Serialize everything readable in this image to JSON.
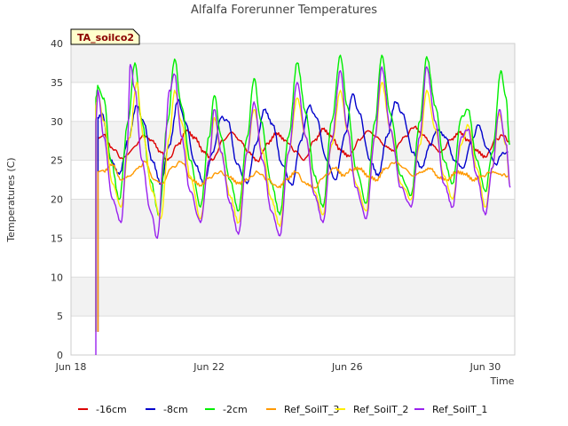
{
  "chart_data": {
    "type": "line",
    "title": "Alfalfa Forerunner Temperatures",
    "xlabel": "Time",
    "ylabel": "Temperatures (C)",
    "ylim": [
      0,
      40
    ],
    "xlim": [
      18,
      30.85
    ],
    "x_unit": "days since Jun 0 (day of June)",
    "yticks": [
      0,
      5,
      10,
      15,
      20,
      25,
      30,
      35,
      40
    ],
    "xticks": [
      {
        "value": 18,
        "label": "Jun 18"
      },
      {
        "value": 22,
        "label": "Jun 22"
      },
      {
        "value": 26,
        "label": "Jun 26"
      },
      {
        "value": 30,
        "label": "Jun 30"
      }
    ],
    "grid": "horizontal bands",
    "legend_position": "bottom",
    "annotation": "TA_soilco2",
    "series": [
      {
        "name": "-16cm",
        "color": "#dd0000",
        "start_value": 3,
        "points": [
          [
            18.78,
            28.0
          ],
          [
            18.95,
            28.3
          ],
          [
            19.2,
            26.5
          ],
          [
            19.5,
            25.2
          ],
          [
            19.85,
            26.8
          ],
          [
            20.1,
            28.2
          ],
          [
            20.35,
            27.5
          ],
          [
            20.6,
            26.0
          ],
          [
            20.8,
            25.0
          ],
          [
            21.1,
            27.0
          ],
          [
            21.35,
            28.8
          ],
          [
            21.6,
            27.8
          ],
          [
            21.85,
            26.0
          ],
          [
            22.1,
            25.0
          ],
          [
            22.4,
            27.5
          ],
          [
            22.65,
            28.6
          ],
          [
            22.9,
            27.5
          ],
          [
            23.15,
            26.0
          ],
          [
            23.4,
            24.9
          ],
          [
            23.7,
            27.2
          ],
          [
            23.95,
            28.5
          ],
          [
            24.2,
            27.6
          ],
          [
            24.5,
            26.2
          ],
          [
            24.75,
            25.0
          ],
          [
            25.05,
            27.5
          ],
          [
            25.3,
            29.0
          ],
          [
            25.55,
            28.0
          ],
          [
            25.8,
            26.3
          ],
          [
            26.05,
            25.5
          ],
          [
            26.35,
            27.6
          ],
          [
            26.6,
            28.8
          ],
          [
            26.85,
            28.0
          ],
          [
            27.1,
            26.8
          ],
          [
            27.35,
            26.2
          ],
          [
            27.65,
            28.0
          ],
          [
            27.95,
            29.3
          ],
          [
            28.2,
            28.2
          ],
          [
            28.45,
            27.0
          ],
          [
            28.7,
            26.0
          ],
          [
            29.0,
            27.6
          ],
          [
            29.25,
            28.6
          ],
          [
            29.5,
            27.5
          ],
          [
            29.75,
            26.2
          ],
          [
            30.0,
            25.4
          ],
          [
            30.3,
            27.6
          ],
          [
            30.5,
            28.2
          ],
          [
            30.7,
            27.4
          ]
        ]
      },
      {
        "name": "-8cm",
        "color": "#0000cc",
        "start_value": 3,
        "points": [
          [
            18.78,
            30.5
          ],
          [
            18.9,
            31.0
          ],
          [
            19.15,
            25.0
          ],
          [
            19.4,
            23.2
          ],
          [
            19.65,
            27.5
          ],
          [
            19.9,
            32.0
          ],
          [
            20.1,
            30.0
          ],
          [
            20.35,
            25.0
          ],
          [
            20.6,
            22.0
          ],
          [
            20.85,
            27.0
          ],
          [
            21.1,
            32.8
          ],
          [
            21.3,
            30.0
          ],
          [
            21.6,
            24.5
          ],
          [
            21.85,
            22.0
          ],
          [
            22.1,
            26.0
          ],
          [
            22.35,
            30.5
          ],
          [
            22.55,
            30.0
          ],
          [
            22.8,
            24.5
          ],
          [
            23.1,
            22.0
          ],
          [
            23.35,
            27.0
          ],
          [
            23.6,
            31.5
          ],
          [
            23.85,
            29.5
          ],
          [
            24.1,
            24.5
          ],
          [
            24.4,
            21.8
          ],
          [
            24.65,
            27.5
          ],
          [
            24.9,
            32.0
          ],
          [
            25.1,
            30.5
          ],
          [
            25.4,
            25.0
          ],
          [
            25.65,
            22.5
          ],
          [
            25.95,
            28.5
          ],
          [
            26.15,
            33.5
          ],
          [
            26.35,
            31.0
          ],
          [
            26.65,
            25.0
          ],
          [
            26.9,
            23.0
          ],
          [
            27.15,
            28.0
          ],
          [
            27.4,
            32.5
          ],
          [
            27.6,
            31.0
          ],
          [
            27.9,
            26.0
          ],
          [
            28.15,
            24.0
          ],
          [
            28.4,
            27.0
          ],
          [
            28.6,
            29.0
          ],
          [
            28.85,
            28.0
          ],
          [
            29.1,
            25.0
          ],
          [
            29.35,
            24.0
          ],
          [
            29.6,
            27.5
          ],
          [
            29.8,
            29.5
          ],
          [
            30.05,
            26.5
          ],
          [
            30.3,
            24.5
          ],
          [
            30.5,
            26.0
          ],
          [
            30.65,
            26.0
          ]
        ]
      },
      {
        "name": "-2cm",
        "color": "#00ee00",
        "start_value": 3,
        "points": [
          [
            18.72,
            33.0
          ],
          [
            18.78,
            34.5
          ],
          [
            18.95,
            33.0
          ],
          [
            19.15,
            25.0
          ],
          [
            19.4,
            20.0
          ],
          [
            19.65,
            30.0
          ],
          [
            19.85,
            37.5
          ],
          [
            20.05,
            30.0
          ],
          [
            20.3,
            22.5
          ],
          [
            20.55,
            18.0
          ],
          [
            20.8,
            30.0
          ],
          [
            21.0,
            38.0
          ],
          [
            21.2,
            32.0
          ],
          [
            21.45,
            25.0
          ],
          [
            21.75,
            19.0
          ],
          [
            22.0,
            28.0
          ],
          [
            22.15,
            33.3
          ],
          [
            22.35,
            28.0
          ],
          [
            22.6,
            22.5
          ],
          [
            22.85,
            18.5
          ],
          [
            23.1,
            28.0
          ],
          [
            23.3,
            35.5
          ],
          [
            23.5,
            30.0
          ],
          [
            23.8,
            22.0
          ],
          [
            24.05,
            18.0
          ],
          [
            24.3,
            28.0
          ],
          [
            24.55,
            37.5
          ],
          [
            24.8,
            31.0
          ],
          [
            25.05,
            23.0
          ],
          [
            25.3,
            19.0
          ],
          [
            25.55,
            30.0
          ],
          [
            25.8,
            38.5
          ],
          [
            26.0,
            32.0
          ],
          [
            26.25,
            24.0
          ],
          [
            26.55,
            19.5
          ],
          [
            26.8,
            30.0
          ],
          [
            27.0,
            38.5
          ],
          [
            27.25,
            31.0
          ],
          [
            27.55,
            23.0
          ],
          [
            27.85,
            20.5
          ],
          [
            28.1,
            30.0
          ],
          [
            28.3,
            38.3
          ],
          [
            28.55,
            32.0
          ],
          [
            28.8,
            25.0
          ],
          [
            29.05,
            22.0
          ],
          [
            29.3,
            30.5
          ],
          [
            29.5,
            31.5
          ],
          [
            29.75,
            25.0
          ],
          [
            30.0,
            21.0
          ],
          [
            30.2,
            26.0
          ],
          [
            30.45,
            36.5
          ],
          [
            30.6,
            33.0
          ],
          [
            30.7,
            27.0
          ]
        ]
      },
      {
        "name": "Ref_SoilT_3",
        "color": "#ff9900",
        "start_value": 3,
        "points": [
          [
            18.78,
            23.5
          ],
          [
            18.95,
            23.6
          ],
          [
            19.2,
            24.5
          ],
          [
            19.45,
            22.5
          ],
          [
            19.7,
            23.0
          ],
          [
            19.95,
            24.0
          ],
          [
            20.15,
            24.8
          ],
          [
            20.4,
            22.5
          ],
          [
            20.65,
            22.0
          ],
          [
            20.9,
            24.0
          ],
          [
            21.2,
            24.8
          ],
          [
            21.5,
            22.5
          ],
          [
            21.75,
            21.8
          ],
          [
            22.0,
            22.8
          ],
          [
            22.3,
            23.5
          ],
          [
            22.6,
            22.8
          ],
          [
            22.85,
            22.0
          ],
          [
            23.1,
            22.5
          ],
          [
            23.4,
            23.5
          ],
          [
            23.7,
            22.5
          ],
          [
            24.0,
            21.5
          ],
          [
            24.25,
            22.5
          ],
          [
            24.5,
            23.5
          ],
          [
            24.8,
            22.0
          ],
          [
            25.05,
            21.5
          ],
          [
            25.35,
            23.0
          ],
          [
            25.65,
            24.0
          ],
          [
            25.9,
            23.0
          ],
          [
            26.1,
            23.8
          ],
          [
            26.35,
            24.0
          ],
          [
            26.6,
            23.0
          ],
          [
            26.85,
            22.5
          ],
          [
            27.1,
            24.0
          ],
          [
            27.4,
            24.8
          ],
          [
            27.65,
            24.0
          ],
          [
            27.9,
            23.0
          ],
          [
            28.15,
            23.5
          ],
          [
            28.4,
            24.0
          ],
          [
            28.65,
            22.8
          ],
          [
            28.9,
            22.5
          ],
          [
            29.15,
            23.5
          ],
          [
            29.4,
            23.3
          ],
          [
            29.65,
            22.5
          ],
          [
            29.9,
            23.0
          ],
          [
            30.2,
            23.5
          ],
          [
            30.45,
            23.2
          ],
          [
            30.65,
            23.0
          ]
        ]
      },
      {
        "name": "Ref_SoilT_2",
        "color": "#ffee00",
        "start_value": 3,
        "points": [
          [
            18.72,
            32.0
          ],
          [
            18.78,
            33.5
          ],
          [
            18.95,
            30.0
          ],
          [
            19.2,
            22.0
          ],
          [
            19.45,
            19.0
          ],
          [
            19.7,
            28.0
          ],
          [
            19.9,
            35.0
          ],
          [
            20.1,
            28.0
          ],
          [
            20.35,
            21.0
          ],
          [
            20.6,
            17.5
          ],
          [
            20.85,
            28.0
          ],
          [
            21.0,
            34.0
          ],
          [
            21.2,
            30.0
          ],
          [
            21.45,
            23.0
          ],
          [
            21.75,
            17.5
          ],
          [
            22.0,
            25.0
          ],
          [
            22.15,
            30.5
          ],
          [
            22.35,
            26.0
          ],
          [
            22.6,
            20.5
          ],
          [
            22.85,
            17.0
          ],
          [
            23.1,
            26.0
          ],
          [
            23.3,
            31.5
          ],
          [
            23.55,
            26.0
          ],
          [
            23.8,
            20.0
          ],
          [
            24.05,
            16.5
          ],
          [
            24.3,
            26.0
          ],
          [
            24.55,
            33.0
          ],
          [
            24.8,
            28.0
          ],
          [
            25.05,
            21.0
          ],
          [
            25.3,
            18.0
          ],
          [
            25.55,
            27.0
          ],
          [
            25.8,
            34.0
          ],
          [
            26.0,
            29.0
          ],
          [
            26.25,
            22.0
          ],
          [
            26.55,
            18.5
          ],
          [
            26.8,
            28.0
          ],
          [
            27.0,
            35.0
          ],
          [
            27.25,
            29.0
          ],
          [
            27.55,
            22.0
          ],
          [
            27.85,
            20.0
          ],
          [
            28.1,
            27.0
          ],
          [
            28.3,
            34.0
          ],
          [
            28.55,
            29.0
          ],
          [
            28.8,
            23.0
          ],
          [
            29.05,
            20.0
          ],
          [
            29.3,
            27.0
          ],
          [
            29.5,
            29.5
          ],
          [
            29.75,
            24.0
          ],
          [
            30.0,
            19.0
          ],
          [
            30.2,
            24.0
          ],
          [
            30.4,
            31.0
          ],
          [
            30.6,
            27.0
          ],
          [
            30.7,
            22.0
          ]
        ]
      },
      {
        "name": "Ref_SoilT_1",
        "color": "#9922ee",
        "start_value": 0,
        "points": [
          [
            18.72,
            30.0
          ],
          [
            18.78,
            34.0
          ],
          [
            18.95,
            28.0
          ],
          [
            19.2,
            20.0
          ],
          [
            19.45,
            17.0
          ],
          [
            19.62,
            26.0
          ],
          [
            19.72,
            37.3
          ],
          [
            19.85,
            34.0
          ],
          [
            20.05,
            25.0
          ],
          [
            20.3,
            18.5
          ],
          [
            20.5,
            15.0
          ],
          [
            20.7,
            26.0
          ],
          [
            20.85,
            34.0
          ],
          [
            21.0,
            36.0
          ],
          [
            21.2,
            28.0
          ],
          [
            21.45,
            21.0
          ],
          [
            21.75,
            17.0
          ],
          [
            22.0,
            25.0
          ],
          [
            22.15,
            31.5
          ],
          [
            22.35,
            26.0
          ],
          [
            22.6,
            19.5
          ],
          [
            22.85,
            15.5
          ],
          [
            23.1,
            26.0
          ],
          [
            23.3,
            32.5
          ],
          [
            23.55,
            25.0
          ],
          [
            23.8,
            18.5
          ],
          [
            24.05,
            15.3
          ],
          [
            24.3,
            26.0
          ],
          [
            24.55,
            35.0
          ],
          [
            24.8,
            28.0
          ],
          [
            25.05,
            20.5
          ],
          [
            25.3,
            17.0
          ],
          [
            25.55,
            27.5
          ],
          [
            25.8,
            36.5
          ],
          [
            26.0,
            29.0
          ],
          [
            26.25,
            21.5
          ],
          [
            26.55,
            17.5
          ],
          [
            26.8,
            28.0
          ],
          [
            27.0,
            37.0
          ],
          [
            27.25,
            29.0
          ],
          [
            27.55,
            21.5
          ],
          [
            27.85,
            19.0
          ],
          [
            28.1,
            28.0
          ],
          [
            28.3,
            37.0
          ],
          [
            28.55,
            30.0
          ],
          [
            28.8,
            22.0
          ],
          [
            29.05,
            19.0
          ],
          [
            29.3,
            28.0
          ],
          [
            29.5,
            29.0
          ],
          [
            29.75,
            23.0
          ],
          [
            30.0,
            18.0
          ],
          [
            30.2,
            24.0
          ],
          [
            30.4,
            31.5
          ],
          [
            30.6,
            27.0
          ],
          [
            30.72,
            21.5
          ]
        ]
      }
    ]
  }
}
